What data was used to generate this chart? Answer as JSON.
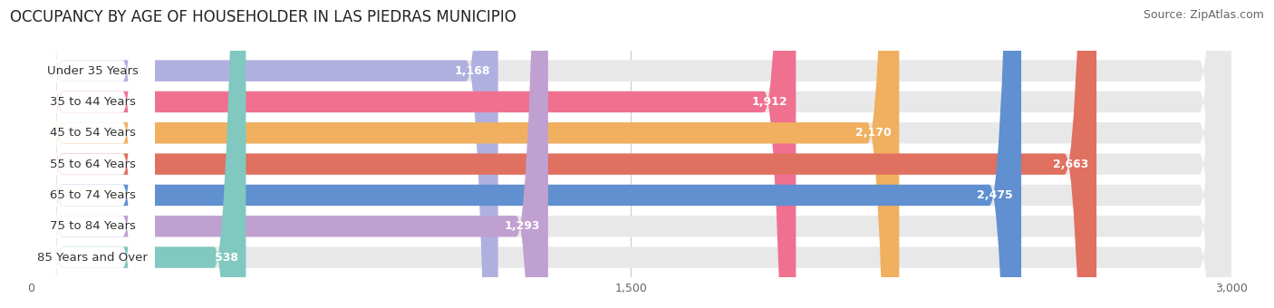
{
  "title": "OCCUPANCY BY AGE OF HOUSEHOLDER IN LAS PIEDRAS MUNICIPIO",
  "source": "Source: ZipAtlas.com",
  "categories": [
    "Under 35 Years",
    "35 to 44 Years",
    "45 to 54 Years",
    "55 to 64 Years",
    "65 to 74 Years",
    "75 to 84 Years",
    "85 Years and Over"
  ],
  "values": [
    1168,
    1912,
    2170,
    2663,
    2475,
    1293,
    538
  ],
  "bar_colors": [
    "#b0b0e0",
    "#f07090",
    "#f0b060",
    "#e07060",
    "#6090d0",
    "#c0a0d0",
    "#80c8c0"
  ],
  "xlim": [
    0,
    3000
  ],
  "xticks": [
    0,
    1500,
    3000
  ],
  "xtick_labels": [
    "0",
    "1,500",
    "3,000"
  ],
  "background_color": "#ffffff",
  "bar_bg_color": "#e8e8e8",
  "title_fontsize": 12,
  "source_fontsize": 9,
  "label_fontsize": 9.5,
  "value_fontsize": 9,
  "bar_height": 0.68
}
